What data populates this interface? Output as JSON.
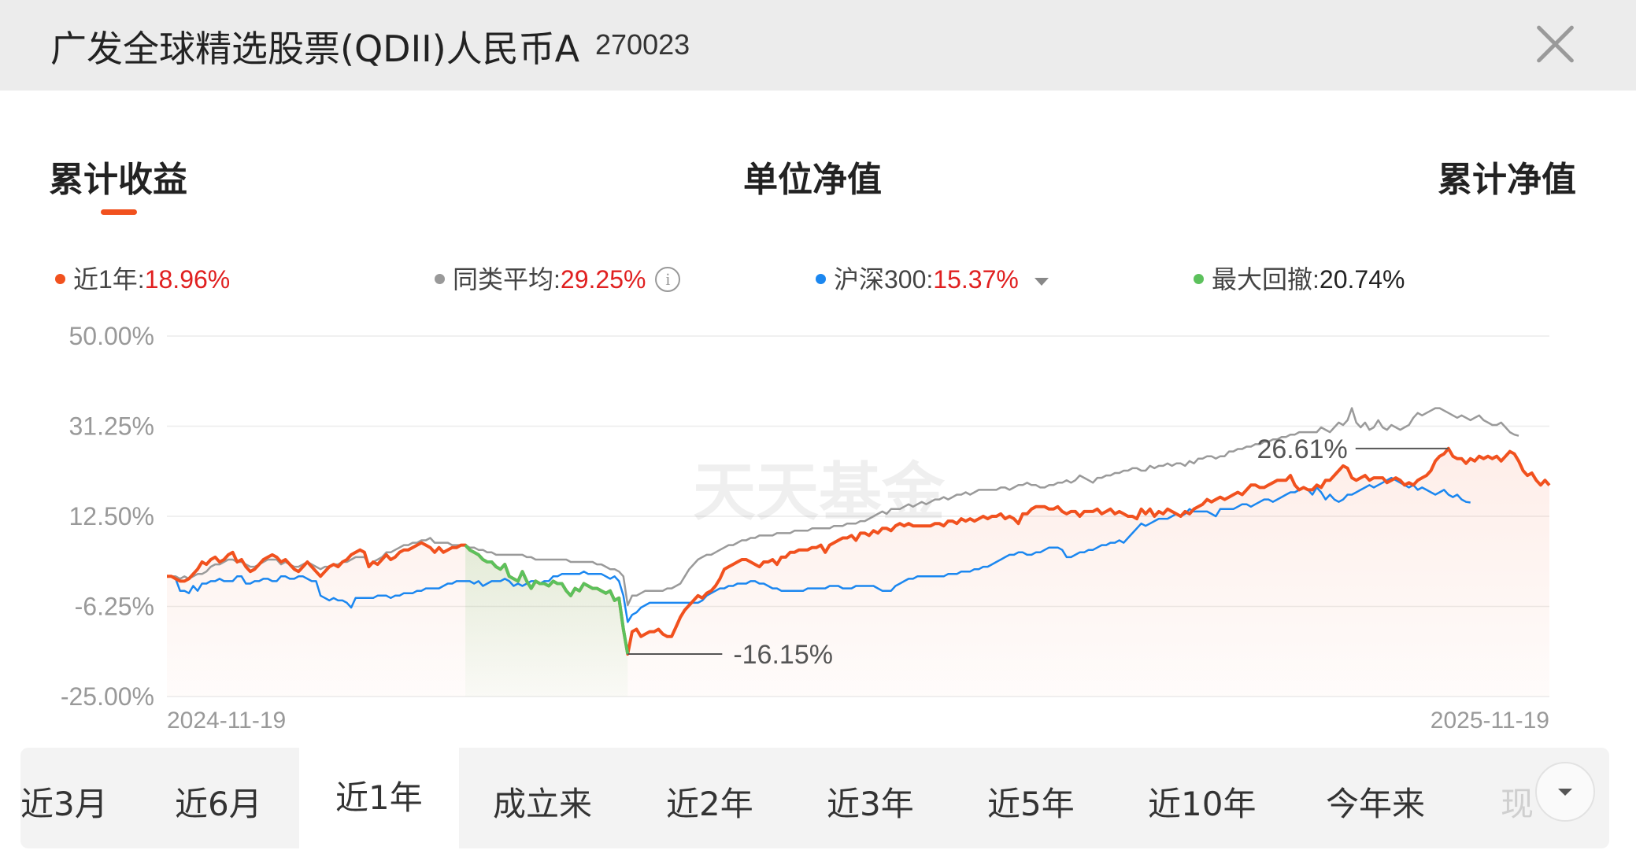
{
  "header": {
    "title": "广发全球精选股票(QDII)人民币A",
    "code": "270023"
  },
  "tabs": [
    {
      "label": "累计收益",
      "active": true
    },
    {
      "label": "单位净值",
      "active": false
    },
    {
      "label": "累计净值",
      "active": false
    }
  ],
  "legend": [
    {
      "label": "近1年:",
      "value": "18.96%",
      "color": "#f1511e",
      "value_color": "#e02020"
    },
    {
      "label": "同类平均:",
      "value": "29.25%",
      "color": "#999999",
      "value_color": "#e02020"
    },
    {
      "label": "沪深300:",
      "value": "15.37%",
      "color": "#1b87f0",
      "value_color": "#e02020"
    },
    {
      "label": "最大回撤:",
      "value": "20.74%",
      "color": "#5cc15c",
      "value_color": "#222222"
    }
  ],
  "chart_data": {
    "type": "line",
    "yticks": [
      "50.00%",
      "31.25%",
      "12.50%",
      "-6.25%",
      "-25.00%"
    ],
    "ylim": [
      -25,
      50
    ],
    "x_start_label": "2024-11-19",
    "x_end_label": "2025-11-19",
    "watermark": "天天基金",
    "annotations": {
      "max": "26.61%",
      "min": "-16.15%"
    },
    "max_drawdown_range_index": [
      68,
      105
    ],
    "series": [
      {
        "name": "近1年",
        "color": "#f1511e",
        "values": [
          0,
          0,
          -0.5,
          -1,
          -1,
          -0.5,
          0.5,
          1.5,
          3,
          2.5,
          3.5,
          4,
          3,
          3.5,
          4.5,
          5,
          3,
          3.5,
          2,
          1,
          1.5,
          2.5,
          3.5,
          4,
          4.5,
          4,
          3,
          3.5,
          2.5,
          1.5,
          1,
          2,
          3,
          2,
          1,
          0,
          1,
          2,
          2.5,
          2,
          3,
          3.5,
          4.5,
          5,
          5.5,
          5,
          2,
          3,
          2.5,
          3.5,
          4.5,
          3.5,
          4,
          5,
          5.5,
          5.5,
          6,
          6.5,
          7,
          6.5,
          6,
          5,
          6,
          5,
          5.5,
          6,
          6,
          6.5,
          6.5,
          5.5,
          5,
          4.5,
          3.5,
          3,
          3,
          2,
          1.5,
          2.5,
          0,
          -0.5,
          -1,
          1,
          -1,
          -2.5,
          -1,
          -1.5,
          -1.5,
          -2,
          -1,
          -1.5,
          -1.5,
          -3,
          -4,
          -2.5,
          -3,
          -1.5,
          -2,
          -2.5,
          -2.5,
          -3,
          -3.5,
          -3,
          -5,
          -4.5,
          -11,
          -16.15,
          -11.5,
          -11,
          -12.5,
          -12,
          -11.5,
          -11.5,
          -11,
          -12,
          -12.5,
          -12.5,
          -10.5,
          -8.5,
          -7,
          -6,
          -5,
          -4,
          -4.5,
          -3.5,
          -3,
          -2,
          -0.5,
          1.5,
          2,
          2.5,
          3,
          3.5,
          3.5,
          3,
          2.5,
          2,
          3,
          3,
          3.5,
          2.5,
          4,
          4,
          5,
          5,
          5.5,
          5.5,
          5.5,
          6,
          6,
          6.5,
          5,
          6.5,
          7,
          7.5,
          8,
          8,
          8.5,
          7.5,
          9,
          9,
          8.5,
          9.5,
          9,
          10,
          10,
          9.5,
          10.5,
          11,
          10.5,
          11,
          10.5,
          10.5,
          10.5,
          10.5,
          10.5,
          11,
          11,
          10.5,
          11.5,
          11.5,
          11,
          12,
          11.5,
          12,
          11.5,
          12,
          12.5,
          12,
          12.5,
          12.5,
          13,
          12,
          12.5,
          12,
          11,
          13,
          13,
          14,
          14.5,
          14.5,
          14.5,
          14,
          14,
          14.5,
          13.5,
          13,
          13.5,
          13.5,
          12.5,
          13.5,
          13.5,
          13.5,
          14,
          13,
          13.5,
          14,
          13,
          13.5,
          13,
          12.5,
          12.5,
          12,
          14,
          13,
          14,
          12.5,
          13.5,
          13,
          14,
          13.5,
          13,
          12.5,
          13.5,
          13,
          14,
          14.5,
          15,
          16,
          15.5,
          16,
          16.5,
          16,
          16.5,
          17,
          17.5,
          17,
          18,
          19,
          19,
          18.5,
          18.5,
          19,
          19.5,
          20,
          20,
          20,
          21,
          19,
          18,
          18.5,
          18,
          18,
          19,
          18.5,
          20,
          20,
          21,
          22,
          23,
          22.5,
          20.5,
          20,
          20.5,
          21,
          20,
          20.5,
          20.5,
          20.5,
          19.5,
          20,
          20.5,
          20,
          19,
          19.5,
          19,
          20,
          20.5,
          21,
          22,
          24,
          25,
          25.5,
          26.61,
          25,
          24.5,
          24.5,
          23.5,
          24.5,
          24,
          25,
          24.5,
          25,
          24.5,
          25,
          24,
          25,
          26,
          25.5,
          24,
          22,
          21,
          21.5,
          20,
          19,
          20,
          18.96
        ]
      },
      {
        "name": "同类平均",
        "color": "#9a9a9a",
        "values": [
          0,
          0,
          0,
          -0.5,
          0,
          -0.5,
          0,
          0.5,
          0.5,
          1,
          2,
          2.5,
          2.5,
          3,
          3.5,
          3.5,
          3,
          3,
          2.5,
          2,
          2,
          2.5,
          3,
          3.5,
          3.5,
          3.5,
          2.5,
          3,
          2.5,
          2,
          2,
          2.5,
          3,
          2.5,
          2,
          1.5,
          2,
          2,
          2.5,
          2.5,
          3,
          3,
          3.5,
          4,
          4,
          4,
          2.5,
          3,
          3.5,
          4,
          5,
          5,
          5.5,
          6,
          6.5,
          6.5,
          7,
          7,
          7.5,
          7.5,
          8,
          7,
          7,
          7,
          7,
          6.5,
          6.5,
          6.5,
          6.5,
          6,
          6,
          5.5,
          5.5,
          5,
          5,
          4.5,
          4.5,
          4.5,
          4.5,
          4.5,
          4.5,
          4.5,
          4,
          4,
          3.5,
          3.5,
          3.5,
          3.5,
          3.5,
          3.5,
          3.5,
          3.5,
          3,
          3,
          3,
          3,
          3,
          3,
          2.5,
          2.5,
          2,
          1.5,
          1.5,
          1,
          0,
          -6,
          -4,
          -4,
          -3.5,
          -3,
          -3,
          -3,
          -3,
          -3,
          -2.5,
          -2.5,
          -2,
          -1.5,
          0,
          1.5,
          2.5,
          3.5,
          4,
          4.5,
          4.5,
          5,
          5.5,
          6,
          6.5,
          6.5,
          7,
          7.5,
          7.5,
          8,
          8,
          8.5,
          8.5,
          8.5,
          8.5,
          9,
          9,
          9,
          9,
          9.5,
          9.5,
          9.5,
          9.5,
          10,
          10,
          10,
          10,
          10,
          10.5,
          10.5,
          10.5,
          11,
          11,
          11,
          11.5,
          11.5,
          12,
          12.5,
          13,
          13.5,
          13,
          14,
          14,
          14,
          14.5,
          15,
          14.5,
          15,
          15.5,
          15,
          15.5,
          16,
          16,
          16.5,
          16,
          16.5,
          17,
          17,
          17.5,
          17,
          17.5,
          18,
          18,
          18,
          18,
          18,
          18.5,
          18.5,
          18,
          18.5,
          19,
          19,
          19.5,
          19,
          19,
          18.5,
          18.5,
          19,
          19,
          19.5,
          19.5,
          20,
          19.5,
          20,
          21,
          20.5,
          20,
          19.5,
          20.5,
          20.5,
          21,
          21,
          21.5,
          21.5,
          22,
          22,
          22.5,
          22.5,
          22,
          22,
          23,
          22.5,
          23,
          23,
          23.5,
          23,
          23.5,
          23.5,
          23,
          24,
          23.5,
          24.5,
          24.5,
          25,
          25,
          24.5,
          25,
          25,
          26,
          26,
          26.5,
          26.5,
          27,
          27,
          27.5,
          27.5,
          28,
          28,
          28.5,
          28.5,
          29,
          29,
          29.5,
          29.5,
          30,
          30,
          30,
          30,
          30,
          31,
          30.5,
          30,
          31,
          32,
          31.5,
          32.5,
          35,
          32,
          31,
          32,
          30.5,
          31,
          32.5,
          31,
          30.5,
          31.5,
          31,
          30.5,
          31,
          31.5,
          33,
          34,
          33.5,
          34,
          34.5,
          35,
          35,
          34.5,
          34,
          33.5,
          33,
          33.5,
          33,
          32.5,
          33,
          33.5,
          32.5,
          32,
          31.5,
          31.5,
          32,
          31,
          30,
          29.5,
          29.25
        ]
      },
      {
        "name": "沪深300",
        "color": "#1b87f0",
        "values": [
          0,
          0,
          -0.5,
          -3,
          -3,
          -3.5,
          -2,
          -3,
          -1.5,
          -1.5,
          -1,
          -1,
          -0.5,
          -1,
          -1,
          -1,
          0,
          0,
          -1.5,
          -1.5,
          -1,
          -1,
          -0.5,
          -0.5,
          -1,
          -1,
          0,
          0,
          -0.5,
          -0.5,
          0,
          0,
          -0.5,
          -1,
          -1,
          -4,
          -4.5,
          -5,
          -4.5,
          -5,
          -5,
          -5.5,
          -6.5,
          -4.5,
          -4.5,
          -4.5,
          -4.5,
          -4.5,
          -4,
          -4,
          -4,
          -4.5,
          -4,
          -4,
          -3.5,
          -3.5,
          -3.5,
          -3,
          -3,
          -2.5,
          -2.5,
          -2.5,
          -2.5,
          -2,
          -1.5,
          -1.5,
          -1,
          -1,
          -1,
          -1,
          -1.5,
          -1,
          -2,
          -1.5,
          -1,
          -1,
          -1,
          -0.5,
          -1,
          -2,
          -1.5,
          -2,
          -1.5,
          -1,
          -1,
          -1.5,
          -1,
          -1,
          0,
          0,
          0.5,
          0.5,
          0.5,
          0.5,
          0.5,
          1,
          0.5,
          0.5,
          0.5,
          0.5,
          0,
          -0.5,
          0,
          -1,
          -4,
          -9.5,
          -8,
          -7.5,
          -6.5,
          -6,
          -5.5,
          -5.5,
          -5.5,
          -5.5,
          -5.5,
          -5.5,
          -5.5,
          -5.5,
          -5.5,
          -5.5,
          -5.5,
          -5.5,
          -5,
          -4,
          -3.5,
          -3,
          -2.5,
          -2.5,
          -2,
          -2,
          -1.5,
          -1.5,
          -1.5,
          -1,
          -1,
          -1.5,
          -1.5,
          -2,
          -2.5,
          -2.5,
          -3,
          -3,
          -3,
          -3,
          -3,
          -3,
          -2.5,
          -2.5,
          -2.5,
          -2.5,
          -2.5,
          -2,
          -2,
          -2,
          -2.5,
          -2.5,
          -2.5,
          -2,
          -2,
          -2,
          -2,
          -2,
          -2.5,
          -3,
          -3,
          -3,
          -2,
          -1.5,
          -1,
          -0.5,
          -0.5,
          0,
          0,
          0,
          0,
          0,
          0,
          0,
          0.5,
          0.5,
          0.5,
          1,
          1,
          1,
          1.5,
          1.5,
          2,
          2,
          2.5,
          3,
          3.5,
          4,
          4.5,
          4.5,
          5,
          5,
          4.5,
          4.5,
          5,
          5,
          5.5,
          6,
          6,
          6,
          5.5,
          4,
          4,
          4.5,
          5,
          5,
          5.5,
          5.5,
          6,
          6.5,
          6.5,
          7,
          7,
          7.5,
          7,
          8,
          9,
          10,
          11,
          10.5,
          11,
          11.5,
          12,
          12,
          12,
          12.5,
          13,
          12.5,
          13,
          14,
          13.5,
          13.5,
          13.5,
          13.5,
          13,
          12.5,
          14,
          14,
          14,
          14,
          14.5,
          15,
          15,
          14.5,
          15,
          15.5,
          16,
          16,
          15.5,
          16,
          16.5,
          17,
          17.5,
          17.5,
          18,
          18.5,
          18,
          17,
          18.5,
          17.5,
          16,
          17,
          16,
          15.5,
          16,
          17,
          17,
          17.5,
          18,
          18.5,
          19,
          18.5,
          19,
          19.5,
          20,
          20.5,
          20,
          19.5,
          19,
          18.5,
          19,
          18,
          18.5,
          18,
          17.5,
          17,
          17.5,
          18,
          17,
          16.5,
          17,
          16,
          15.5,
          15.37
        ]
      }
    ]
  },
  "periods": [
    {
      "label": "近3月",
      "active": false
    },
    {
      "label": "近6月",
      "active": false
    },
    {
      "label": "近1年",
      "active": true
    },
    {
      "label": "成立来",
      "active": false
    },
    {
      "label": "近2年",
      "active": false
    },
    {
      "label": "近3年",
      "active": false
    },
    {
      "label": "近5年",
      "active": false
    },
    {
      "label": "近10年",
      "active": false
    },
    {
      "label": "今年来",
      "active": false
    },
    {
      "label": "现",
      "active": false
    }
  ]
}
